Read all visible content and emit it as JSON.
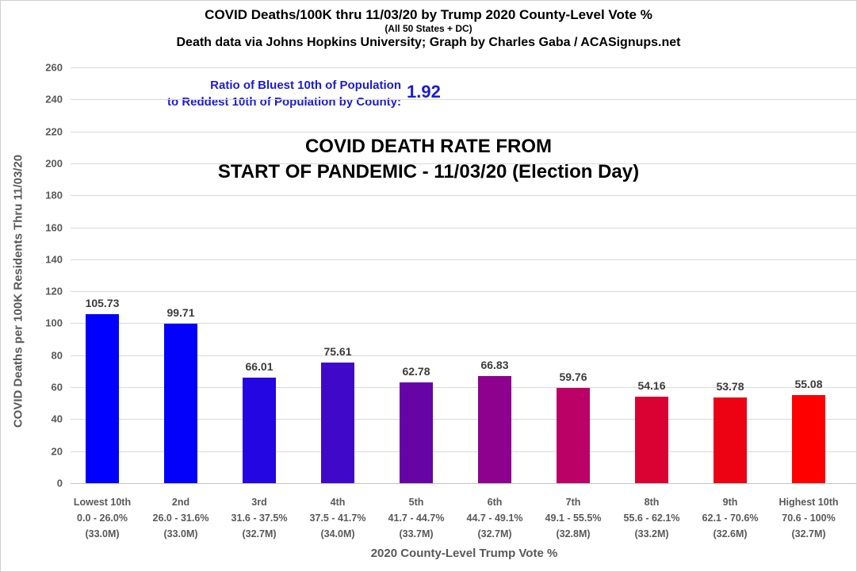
{
  "header": {
    "title_line1": "COVID Deaths/100K thru 11/03/20 by Trump 2020 County-Level Vote %",
    "title_line2": "(All 50 States + DC)",
    "title_line3": "Death data via Johns Hopkins University; Graph by Charles Gaba / ACASignups.net"
  },
  "ratio": {
    "label_line1": "Ratio of Bluest 10th of Population",
    "label_line2": "to Reddest 10th of Population by County:",
    "value": "1.92",
    "color": "#1b1bd8"
  },
  "overlay_title": {
    "line1": "COVID DEATH RATE FROM",
    "line2": "START OF PANDEMIC - 11/03/20 (Election Day)"
  },
  "chart_data": {
    "type": "bar",
    "title": "COVID DEATH RATE FROM START OF PANDEMIC - 11/03/20 (Election Day)",
    "xlabel": "2020 County-Level Trump Vote %",
    "ylabel": "COVID Deaths per 100K Residents Thru 11/03/20",
    "ylim": [
      0,
      260
    ],
    "ytick_step": 20,
    "grid": true,
    "legend": "none",
    "categories": [
      {
        "name": "Lowest 10th",
        "range": "0.0 - 26.0%",
        "population": "(33.0M)"
      },
      {
        "name": "2nd",
        "range": "26.0 - 31.6%",
        "population": "(33.0M)"
      },
      {
        "name": "3rd",
        "range": "31.6 - 37.5%",
        "population": "(32.7M)"
      },
      {
        "name": "4th",
        "range": "37.5 - 41.7%",
        "population": "(34.0M)"
      },
      {
        "name": "5th",
        "range": "41.7 - 44.7%",
        "population": "(33.7M)"
      },
      {
        "name": "6th",
        "range": "44.7 - 49.1%",
        "population": "(32.7M)"
      },
      {
        "name": "7th",
        "range": "49.1 - 55.5%",
        "population": "(32.8M)"
      },
      {
        "name": "8th",
        "range": "55.6 - 62.1%",
        "population": "(33.2M)"
      },
      {
        "name": "9th",
        "range": "62.1 - 70.6%",
        "population": "(32.6M)"
      },
      {
        "name": "Highest 10th",
        "range": "70.6 - 100%",
        "population": "(32.7M)"
      }
    ],
    "values": [
      105.73,
      99.71,
      66.01,
      75.61,
      62.78,
      66.83,
      59.76,
      54.16,
      53.78,
      55.08
    ],
    "value_labels": [
      "105.73",
      "99.71",
      "66.01",
      "75.61",
      "62.78",
      "66.83",
      "59.76",
      "54.16",
      "53.78",
      "55.08"
    ],
    "bar_colors": [
      "#0000ff",
      "#0401fa",
      "#2306e2",
      "#4008c9",
      "#6604a6",
      "#8e018e",
      "#bb0166",
      "#d90233",
      "#ec0213",
      "#ff0000"
    ],
    "gridline_color": "#d9d9d9",
    "tick_label_color": "#595959"
  }
}
